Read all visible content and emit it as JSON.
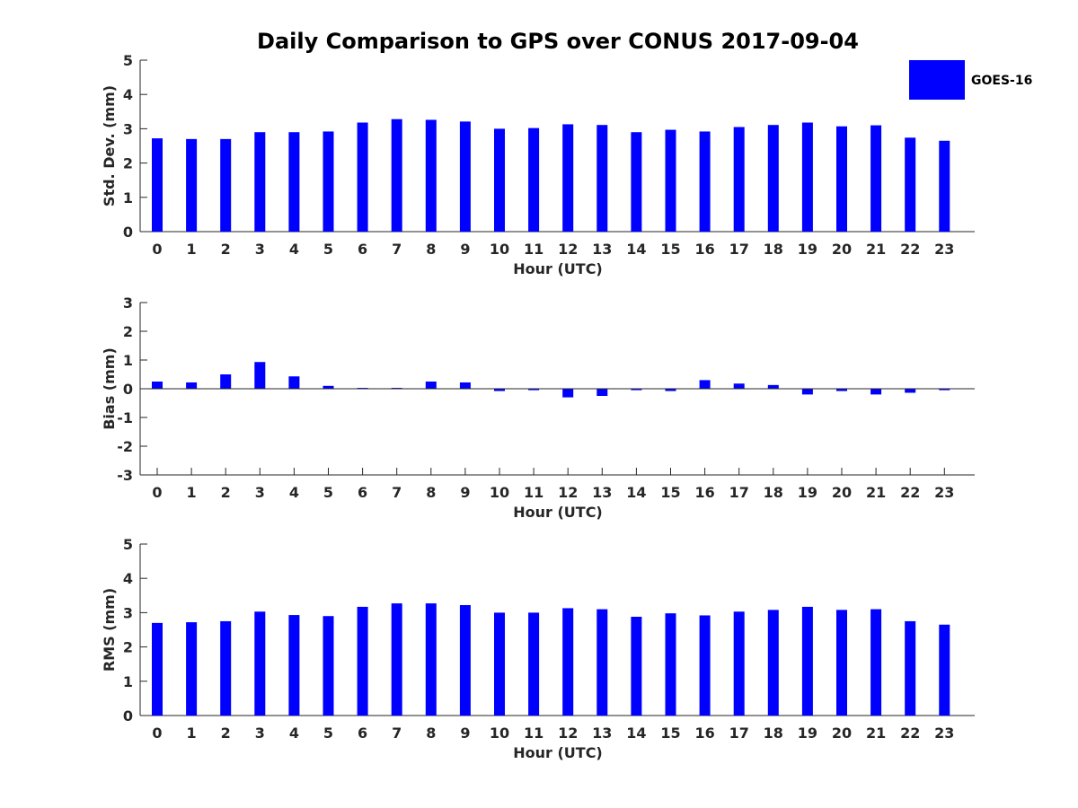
{
  "figure_title": "Daily Comparison to GPS over CONUS 2017-09-04",
  "legend": {
    "label": "GOES-16",
    "color": "#0000ff"
  },
  "chart_data": [
    {
      "type": "bar",
      "name": "std-dev",
      "ylabel": "Std. Dev. (mm)",
      "xlabel": "Hour (UTC)",
      "ylim": [
        0,
        5
      ],
      "yticks": [
        "0",
        "1",
        "2",
        "3",
        "4",
        "5"
      ],
      "categories": [
        "0",
        "1",
        "2",
        "3",
        "4",
        "5",
        "6",
        "7",
        "8",
        "9",
        "10",
        "11",
        "12",
        "13",
        "14",
        "15",
        "16",
        "17",
        "18",
        "19",
        "20",
        "21",
        "22",
        "23"
      ],
      "series": [
        {
          "name": "GOES-16",
          "values": [
            2.72,
            2.7,
            2.7,
            2.9,
            2.9,
            2.92,
            3.18,
            3.28,
            3.26,
            3.21,
            3.0,
            3.02,
            3.13,
            3.11,
            2.9,
            2.97,
            2.92,
            3.05,
            3.11,
            3.18,
            3.07,
            3.1,
            2.74,
            2.65
          ]
        }
      ]
    },
    {
      "type": "bar",
      "name": "bias",
      "ylabel": "Bias (mm)",
      "xlabel": "Hour (UTC)",
      "ylim": [
        -3,
        3
      ],
      "yticks": [
        "-3",
        "-2",
        "-1",
        "0",
        "1",
        "2",
        "3"
      ],
      "categories": [
        "0",
        "1",
        "2",
        "3",
        "4",
        "5",
        "6",
        "7",
        "8",
        "9",
        "10",
        "11",
        "12",
        "13",
        "14",
        "15",
        "16",
        "17",
        "18",
        "19",
        "20",
        "21",
        "22",
        "23"
      ],
      "series": [
        {
          "name": "GOES-16",
          "values": [
            0.25,
            0.22,
            0.5,
            0.93,
            0.43,
            0.1,
            0.03,
            0.03,
            0.25,
            0.22,
            -0.08,
            -0.05,
            -0.3,
            -0.25,
            -0.05,
            -0.08,
            0.3,
            0.18,
            0.13,
            -0.2,
            -0.08,
            -0.2,
            -0.14,
            -0.05
          ]
        }
      ]
    },
    {
      "type": "bar",
      "name": "rms",
      "ylabel": "RMS (mm)",
      "xlabel": "Hour (UTC)",
      "ylim": [
        0,
        5
      ],
      "yticks": [
        "0",
        "1",
        "2",
        "3",
        "4",
        "5"
      ],
      "categories": [
        "0",
        "1",
        "2",
        "3",
        "4",
        "5",
        "6",
        "7",
        "8",
        "9",
        "10",
        "11",
        "12",
        "13",
        "14",
        "15",
        "16",
        "17",
        "18",
        "19",
        "20",
        "21",
        "22",
        "23"
      ],
      "series": [
        {
          "name": "GOES-16",
          "values": [
            2.7,
            2.72,
            2.75,
            3.03,
            2.93,
            2.9,
            3.17,
            3.27,
            3.27,
            3.22,
            3.0,
            3.0,
            3.13,
            3.1,
            2.88,
            2.98,
            2.92,
            3.03,
            3.08,
            3.17,
            3.08,
            3.1,
            2.75,
            2.65
          ]
        }
      ]
    }
  ]
}
